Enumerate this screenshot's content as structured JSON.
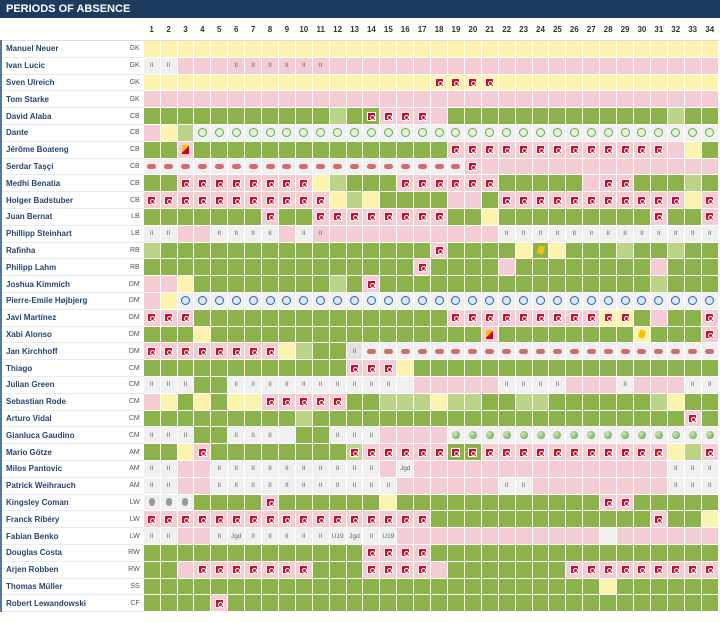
{
  "title": "PERIODS OF ABSENCE",
  "matchdays": [
    "1",
    "2",
    "3",
    "4",
    "5",
    "6",
    "7",
    "8",
    "9",
    "10",
    "11",
    "12",
    "13",
    "14",
    "15",
    "16",
    "17",
    "18",
    "19",
    "20",
    "21",
    "22",
    "23",
    "24",
    "25",
    "26",
    "27",
    "28",
    "29",
    "30",
    "31",
    "32",
    "33",
    "34"
  ],
  "legend_colors": {
    "played": "#8cb34b",
    "sub": "#bcd488",
    "bench": "#fbf3ae",
    "out": "#f3cdd3",
    "none": "#f0f0f0"
  },
  "players": [
    {
      "name": "Manuel Neuer",
      "pos": "GK",
      "cells": "YYYYYYYYYYYYYYYYYYYYYYYYYYYYYYYYYY",
      "marks": {}
    },
    {
      "name": "Ivan Lucic",
      "pos": "GK",
      "cells": "WWPPPPPPPPPPPPPPPPPPPPPPPPPPPPPPPP",
      "marks": {
        "1": "II",
        "2": "II",
        "6": "II",
        "7": "II",
        "8": "II",
        "9": "II",
        "10": "II",
        "11": "II"
      }
    },
    {
      "name": "Sven Ulreich",
      "pos": "GK",
      "cells": "YYYYYYYYYYYYYYYYYYYYYYYYYYYYYYYYYY",
      "marks": {
        "18": "inj",
        "19": "inj",
        "20": "inj",
        "21": "inj"
      }
    },
    {
      "name": "Tom Starke",
      "pos": "GK",
      "cells": "PPPPPPPPPPPPPPPPPPPPPPPPPPPPPPPPPP",
      "marks": {}
    },
    {
      "name": "David Alaba",
      "pos": "CB",
      "cells": "GGGGGGGGGGGLGGPPPPGGGGGGGGGGGGGLGG",
      "marks": {
        "14": "inj",
        "15": "inj",
        "16": "inj",
        "17": "inj"
      }
    },
    {
      "name": "Dante",
      "pos": "CB",
      "cells": "PYLWWWWWWWWWWWWWWWWWWWWWWWWWWWWWWW",
      "marks": {
        "4": "club-gr",
        "5": "club-gr",
        "6": "club-gr",
        "7": "club-gr",
        "8": "club-gr",
        "9": "club-gr",
        "10": "club-gr",
        "11": "club-gr",
        "12": "club-gr",
        "13": "club-gr",
        "14": "club-gr",
        "15": "club-gr",
        "16": "club-gr",
        "17": "club-gr",
        "18": "club-gr",
        "19": "club-gr",
        "20": "club-gr",
        "21": "club-gr",
        "22": "club-gr",
        "23": "club-gr",
        "24": "club-gr",
        "25": "club-gr",
        "26": "club-gr",
        "27": "club-gr",
        "28": "club-gr",
        "29": "club-gr",
        "30": "club-gr",
        "31": "club-gr",
        "32": "club-gr",
        "33": "club-gr",
        "34": "club-gr"
      }
    },
    {
      "name": "Jérôme Boateng",
      "pos": "CB",
      "cells": "GGPGGGGGGGGGGGGGGGPPPPPPPPPPPPPPYG",
      "marks": {
        "3": "card",
        "19": "inj",
        "20": "inj",
        "21": "inj",
        "22": "inj",
        "23": "inj",
        "24": "inj",
        "25": "inj",
        "26": "inj",
        "27": "inj",
        "28": "inj",
        "29": "inj",
        "30": "inj",
        "31": "inj"
      }
    },
    {
      "name": "Serdar Taşçi",
      "pos": "CB",
      "cells": "WWWWWWWWWWWWWWWWWWWPPPPPPPPPPPPPPP",
      "marks": {
        "1": "sp",
        "2": "sp",
        "3": "sp",
        "4": "sp",
        "5": "sp",
        "6": "sp",
        "7": "sp",
        "8": "sp",
        "9": "sp",
        "10": "sp",
        "11": "sp",
        "12": "sp",
        "13": "sp",
        "14": "sp",
        "15": "sp",
        "16": "sp",
        "17": "sp",
        "18": "sp",
        "19": "sp",
        "20": "inj"
      }
    },
    {
      "name": "Medhi Benatia",
      "pos": "CB",
      "cells": "GGPPPPPPPPYLGGGPPPPPPGGGGGPPPGGGLG",
      "marks": {
        "3": "inj",
        "4": "inj",
        "5": "inj",
        "6": "inj",
        "7": "inj",
        "8": "inj",
        "9": "inj",
        "10": "inj",
        "16": "inj",
        "17": "inj",
        "18": "inj",
        "19": "inj",
        "20": "inj",
        "21": "inj",
        "28": "inj",
        "29": "inj"
      }
    },
    {
      "name": "Holger Badstuber",
      "pos": "CB",
      "cells": "PPPPPPPPPPPYLYGGGGPPGPPPPPPPPPPPYP",
      "marks": {
        "1": "inj",
        "2": "inj",
        "3": "inj",
        "4": "inj",
        "5": "inj",
        "6": "inj",
        "7": "inj",
        "8": "inj",
        "9": "inj",
        "10": "inj",
        "11": "inj",
        "22": "inj",
        "23": "inj",
        "24": "inj",
        "25": "inj",
        "26": "inj",
        "27": "inj",
        "28": "inj",
        "29": "inj",
        "30": "inj",
        "31": "inj",
        "32": "inj",
        "34": "inj"
      }
    },
    {
      "name": "Juan Bernat",
      "pos": "LB",
      "cells": "GGGGGGGPGGPPPPPPPPGGYGGGGGGGGGPGGP",
      "marks": {
        "8": "inj",
        "11": "inj",
        "12": "inj",
        "13": "inj",
        "14": "inj",
        "15": "inj",
        "16": "inj",
        "17": "inj",
        "18": "inj",
        "31": "inj",
        "34": "inj"
      }
    },
    {
      "name": "Phillipp Steinhart",
      "pos": "LB",
      "cells": "WWPPWWWWPWPPPPPPPPPPPWWWWWWWWWWWWW",
      "marks": {
        "1": "II",
        "2": "II",
        "5": "II",
        "6": "II",
        "7": "II",
        "8": "II",
        "10": "II",
        "11": "II",
        "22": "II",
        "23": "II",
        "24": "II",
        "25": "II",
        "26": "II",
        "27": "II",
        "28": "II",
        "29": "II",
        "30": "II",
        "31": "II",
        "32": "II",
        "33": "II",
        "34": "II"
      }
    },
    {
      "name": "Rafinha",
      "pos": "RB",
      "cells": "LGGGGGGGGGGGGGGGGPGGGGYGYGGGLGGLGG",
      "marks": {
        "18": "inj",
        "24": "ycard"
      }
    },
    {
      "name": "Philipp Lahm",
      "pos": "RB",
      "cells": "GGGGGGGGGGGGGGGGPGGGGPGGGGGGGGPGGG",
      "marks": {
        "17": "inj"
      }
    },
    {
      "name": "Joshua Kimmich",
      "pos": "DM",
      "cells": "PPYGGGGGGGGLGPGGGGGGGGGGGGGGGGLGGG",
      "marks": {
        "14": "inj"
      }
    },
    {
      "name": "Pierre-Emile Højbjerg",
      "pos": "DM",
      "cells": "PYWWWWWWWWWWWWWWWWWWWWWWWWWWWWWWWW",
      "marks": {
        "3": "club-bl",
        "4": "club-bl",
        "5": "club-bl",
        "6": "club-bl",
        "7": "club-bl",
        "8": "club-bl",
        "9": "club-bl",
        "10": "club-bl",
        "11": "club-bl",
        "12": "club-bl",
        "13": "club-bl",
        "14": "club-bl",
        "15": "club-bl",
        "16": "club-bl",
        "17": "club-bl",
        "18": "club-bl",
        "19": "club-bl",
        "20": "club-bl",
        "21": "club-bl",
        "22": "club-bl",
        "23": "club-bl",
        "24": "club-bl",
        "25": "club-bl",
        "26": "club-bl",
        "27": "club-bl",
        "28": "club-bl",
        "29": "club-bl",
        "30": "club-bl",
        "31": "club-bl",
        "32": "club-bl",
        "33": "club-bl",
        "34": "club-bl"
      }
    },
    {
      "name": "Javi Martínez",
      "pos": "DM",
      "cells": "PPPGGGGGGGGGGGGGGGPPPPPPPPPYYGPGGP",
      "marks": {
        "1": "inj",
        "2": "inj",
        "3": "inj",
        "19": "inj",
        "20": "inj",
        "21": "inj",
        "22": "inj",
        "23": "inj",
        "24": "inj",
        "25": "inj",
        "26": "inj",
        "27": "inj",
        "28": "inj",
        "29": "inj",
        "34": "inj"
      }
    },
    {
      "name": "Xabi Alonso",
      "pos": "DM",
      "cells": "GGGYGGGGGGGGGGGGGGGGPGGGGGGGGYGGGP",
      "marks": {
        "21": "card",
        "30": "ycard",
        "34": "inj"
      }
    },
    {
      "name": "Jan Kirchhoff",
      "pos": "DM",
      "cells": "PPPPPPPPYLGGDWWWWWWWWWWWWWWWWWWWWW",
      "marks": {
        "1": "inj",
        "2": "inj",
        "3": "inj",
        "4": "inj",
        "5": "inj",
        "6": "inj",
        "7": "inj",
        "8": "inj",
        "13": "II",
        "14": "sp",
        "15": "sp",
        "16": "sp",
        "17": "sp",
        "18": "sp",
        "19": "sp",
        "20": "sp",
        "21": "sp",
        "22": "sp",
        "23": "sp",
        "24": "sp",
        "25": "sp",
        "26": "sp",
        "27": "sp",
        "28": "sp",
        "29": "sp",
        "30": "sp",
        "31": "sp",
        "32": "sp",
        "33": "sp",
        "34": "sp"
      }
    },
    {
      "name": "Thiago",
      "pos": "CM",
      "cells": "GGGGGGGGGGGGPPPYGGGGGGGGGGGGGGGGGG",
      "marks": {
        "13": "inj",
        "14": "inj",
        "15": "inj"
      }
    },
    {
      "name": "Julian Green",
      "pos": "CM",
      "cells": "WWWGGWWWWWWWWWWWPPPPPWWWWPPPWPPPWW",
      "marks": {
        "1": "II",
        "2": "II",
        "3": "II",
        "6": "II",
        "7": "II",
        "8": "II",
        "9": "II",
        "10": "II",
        "11": "II",
        "12": "II",
        "13": "II",
        "14": "II",
        "15": "II",
        "22": "II",
        "23": "II",
        "24": "II",
        "25": "II",
        "29": "II",
        "33": "II",
        "34": "II"
      }
    },
    {
      "name": "Sebastian Rode",
      "pos": "CM",
      "cells": "PYGYGYYPPPPPGGLLLYLLGGLLGGGGGGLYGG",
      "marks": {
        "8": "inj",
        "9": "inj",
        "10": "inj",
        "11": "inj",
        "12": "inj"
      }
    },
    {
      "name": "Arturo Vidal",
      "pos": "CM",
      "cells": "GGGGGGGGGLGGGGGGGGGGGGGGGGGGGGGGPG",
      "marks": {
        "33": "inj"
      }
    },
    {
      "name": "Gianluca Gaudino",
      "pos": "CM",
      "cells": "WWWGGWWWWGGWWWPPPPWWWWWWWWWWWWWWWW",
      "marks": {
        "1": "II",
        "2": "II",
        "3": "II",
        "6": "II",
        "7": "II",
        "8": "II",
        "12": "II",
        "13": "II",
        "14": "II",
        "19": "ball",
        "20": "ball",
        "21": "ball",
        "22": "ball",
        "23": "ball",
        "24": "ball",
        "25": "ball",
        "26": "ball",
        "27": "ball",
        "28": "ball",
        "29": "ball",
        "30": "ball",
        "31": "ball",
        "32": "ball",
        "33": "ball",
        "34": "ball"
      }
    },
    {
      "name": "Mario Götze",
      "pos": "AM",
      "cells": "GGYPGGGGGGGGLPPPPPGGPPPPPPPPPPPYLP",
      "marks": {
        "4": "inj",
        "13": "inj",
        "14": "inj",
        "15": "inj",
        "16": "inj",
        "17": "inj",
        "18": "inj",
        "19": "inj",
        "20": "inj",
        "21": "inj",
        "22": "inj",
        "23": "inj",
        "24": "inj",
        "25": "inj",
        "26": "inj",
        "27": "inj",
        "28": "inj",
        "29": "inj",
        "30": "inj",
        "31": "inj",
        "34": "inj"
      }
    },
    {
      "name": "Milos Pantovic",
      "pos": "AM",
      "cells": "WWPPWWWWWWWWWWPWPPPPPPPPPPPPPPPWWW",
      "marks": {
        "1": "II",
        "2": "II",
        "5": "II",
        "6": "II",
        "7": "II",
        "8": "II",
        "9": "II",
        "10": "II",
        "11": "II",
        "12": "II",
        "13": "II",
        "14": "II",
        "16": "Jgd",
        "32": "II",
        "33": "II",
        "34": "II"
      }
    },
    {
      "name": "Patrick Weihrauch",
      "pos": "AM",
      "cells": "WWPPWWWWWWWWWWWPPPPPPWWPPPPPPPPWWW",
      "marks": {
        "1": "II",
        "2": "II",
        "5": "II",
        "6": "II",
        "7": "II",
        "8": "II",
        "9": "II",
        "10": "II",
        "11": "II",
        "12": "II",
        "13": "II",
        "14": "II",
        "15": "II",
        "22": "II",
        "23": "II",
        "32": "II",
        "33": "II",
        "34": "II"
      }
    },
    {
      "name": "Kingsley Coman",
      "pos": "LW",
      "cells": "WWWGGGGPGGGGGGYGGGGGGGGGGGGPPGGGGG",
      "marks": {
        "1": "grey",
        "2": "grey",
        "3": "grey",
        "8": "inj",
        "28": "inj",
        "29": "inj"
      }
    },
    {
      "name": "Franck Ribéry",
      "pos": "LW",
      "cells": "PPPPPPPPPPPPPPPPPGGGGGGGGGGGGGPGGY",
      "marks": {
        "1": "inj",
        "2": "inj",
        "3": "inj",
        "4": "inj",
        "5": "inj",
        "6": "inj",
        "7": "inj",
        "8": "inj",
        "9": "inj",
        "10": "inj",
        "11": "inj",
        "12": "inj",
        "13": "inj",
        "14": "inj",
        "15": "inj",
        "16": "inj",
        "17": "inj",
        "31": "inj"
      }
    },
    {
      "name": "Fabian Benko",
      "pos": "LW",
      "cells": "WWPPWWWWWWWWWWWPPPPPPPPPPPPWPPPPPP",
      "marks": {
        "1": "II",
        "2": "II",
        "5": "II",
        "6": "Jgd",
        "7": "II",
        "8": "II",
        "9": "II",
        "10": "II",
        "11": "II",
        "12": "U19",
        "13": "Jgd",
        "14": "II",
        "15": "U19"
      }
    },
    {
      "name": "Douglas Costa",
      "pos": "RW",
      "cells": "GGGGGGGGGGGGGPPPPGGGGGGGGGGGGGGGGG",
      "marks": {
        "14": "inj",
        "15": "inj",
        "16": "inj",
        "17": "inj"
      }
    },
    {
      "name": "Arjen Robben",
      "pos": "RW",
      "cells": "GGPPPPPPPPGGGPPPPPGGGGGGGPPPPPPPPP",
      "marks": {
        "4": "inj",
        "5": "inj",
        "6": "inj",
        "7": "inj",
        "8": "inj",
        "9": "inj",
        "10": "inj",
        "14": "inj",
        "15": "inj",
        "16": "inj",
        "17": "inj",
        "26": "inj",
        "27": "inj",
        "28": "inj",
        "29": "inj",
        "30": "inj",
        "31": "inj",
        "32": "inj",
        "33": "inj",
        "34": "inj"
      }
    },
    {
      "name": "Thomas Müller",
      "pos": "SS",
      "cells": "GGGGGGGGGGGGGGGGGGGGGGGGGGGYGGGGGG",
      "marks": {}
    },
    {
      "name": "Robert Lewandowski",
      "pos": "CF",
      "cells": "GGGGPGGGGGGGGGGGGGGGGGGGGGGGGGGGGG",
      "marks": {
        "5": "inj"
      }
    }
  ]
}
